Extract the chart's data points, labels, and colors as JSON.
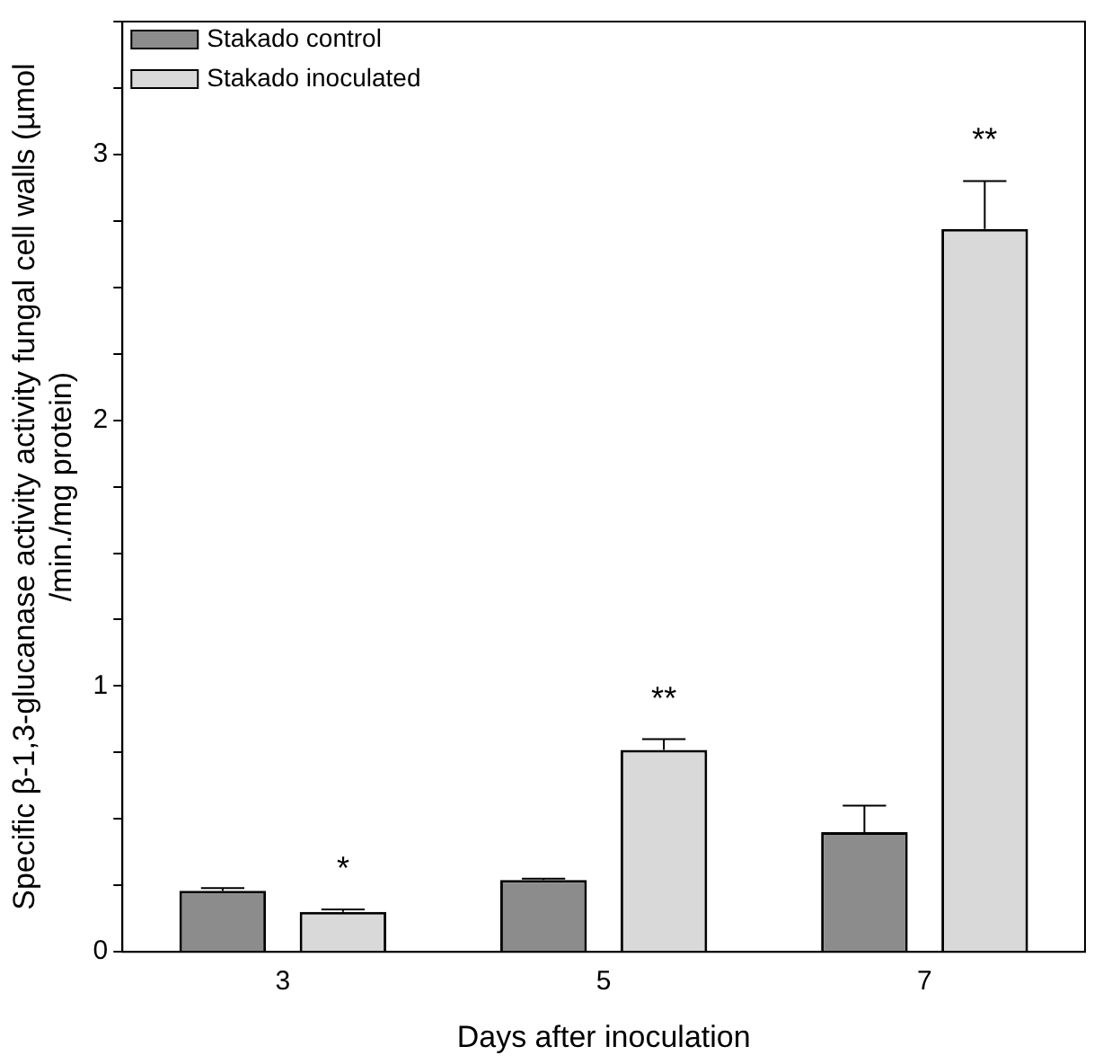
{
  "chart_data": {
    "type": "bar",
    "xlabel": "Days after inoculation",
    "ylabel": "Specific β-1,3-glucanase activity activity fungal cell walls (µmol /min./mg protein)",
    "categories": [
      "3",
      "5",
      "7"
    ],
    "series": [
      {
        "name": "Stakado control",
        "color": "#8c8c8c",
        "values": [
          0.23,
          0.27,
          0.45
        ],
        "errors": [
          0.01,
          0.005,
          0.1
        ]
      },
      {
        "name": "Stakado inoculated",
        "color": "#d9d9d9",
        "values": [
          0.15,
          0.76,
          2.72
        ],
        "errors": [
          0.01,
          0.04,
          0.18
        ]
      }
    ],
    "ylim": [
      0,
      3.5
    ],
    "yticks": [
      0,
      {
        "value": 0.25,
        "label": null
      },
      {
        "value": 0.5,
        "label": null
      },
      {
        "value": 0.75,
        "label": null
      },
      1,
      {
        "value": 1.25,
        "label": null
      },
      {
        "value": 1.5,
        "label": null
      },
      {
        "value": 1.75,
        "label": null
      },
      2,
      {
        "value": 2.25,
        "label": null
      },
      {
        "value": 2.5,
        "label": null
      },
      {
        "value": 2.75,
        "label": null
      },
      3,
      {
        "value": 3.25,
        "label": null
      },
      {
        "value": 3.5,
        "label": null
      }
    ],
    "annotations": [
      "*",
      "**",
      "**"
    ],
    "legend": "top left",
    "grid": false
  }
}
